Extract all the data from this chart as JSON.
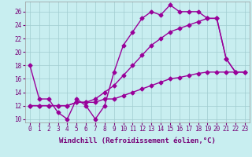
{
  "xlabel": "Windchill (Refroidissement éolien,°C)",
  "xlim": [
    -0.5,
    23.5
  ],
  "ylim": [
    9.5,
    27.5
  ],
  "xticks": [
    0,
    1,
    2,
    3,
    4,
    5,
    6,
    7,
    8,
    9,
    10,
    11,
    12,
    13,
    14,
    15,
    16,
    17,
    18,
    19,
    20,
    21,
    22,
    23
  ],
  "yticks": [
    10,
    12,
    14,
    16,
    18,
    20,
    22,
    24,
    26
  ],
  "bg_color": "#c8eef0",
  "grid_color": "#a0ccd0",
  "line_color": "#990099",
  "markersize": 2.5,
  "linewidth": 1.0,
  "line1_x": [
    0,
    1,
    2,
    3,
    4,
    5,
    6,
    7,
    8,
    9,
    10,
    11,
    12,
    13,
    14,
    15,
    16,
    17,
    18,
    19,
    20,
    21,
    22
  ],
  "line1_y": [
    18,
    13,
    13,
    11,
    10,
    13,
    12,
    10,
    12,
    17,
    21,
    23,
    25,
    26,
    25.5,
    27,
    26,
    26,
    26,
    25,
    25,
    19,
    17
  ],
  "line2_x": [
    0,
    1,
    2,
    3,
    4,
    5,
    6,
    7,
    8,
    9,
    10,
    11,
    12,
    13,
    14,
    15,
    16,
    17,
    18,
    19,
    20,
    21,
    22,
    23
  ],
  "line2_y": [
    12,
    12,
    12,
    12,
    12,
    12.5,
    12.5,
    12.5,
    13,
    13,
    13.5,
    14,
    14.5,
    15,
    15.5,
    16,
    16.2,
    16.5,
    16.8,
    17,
    17,
    17,
    17,
    17
  ],
  "line3_x": [
    0,
    1,
    2,
    3,
    4,
    5,
    6,
    7,
    8,
    9,
    10,
    11,
    12,
    13,
    14,
    15,
    16,
    17,
    18,
    19,
    20,
    21,
    22,
    23
  ],
  "line3_y": [
    12,
    12,
    12,
    12,
    12,
    12.5,
    12.5,
    13,
    14,
    15,
    16.5,
    18,
    19.5,
    21,
    22,
    23,
    23.5,
    24,
    24.5,
    25,
    25,
    19,
    17,
    17
  ],
  "font_color": "#770077",
  "tick_fontsize": 5.5,
  "label_fontsize": 6.5
}
